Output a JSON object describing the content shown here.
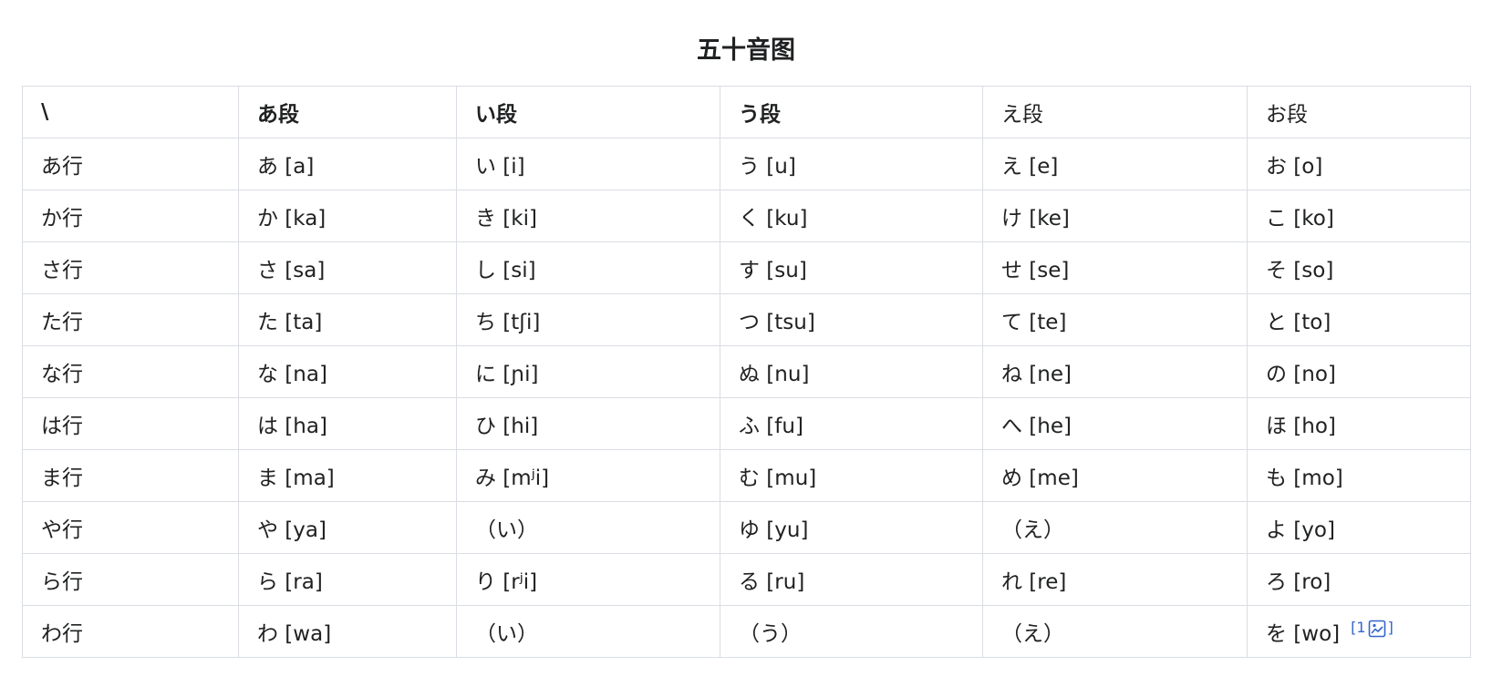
{
  "caption": "五十音图",
  "header": [
    "\\",
    "あ段",
    "い段",
    "う段",
    "え段",
    "お段"
  ],
  "rows": [
    [
      "あ行",
      "あ [a]",
      "い [i]",
      "う [u]",
      "え [e]",
      "お [o]"
    ],
    [
      "か行",
      "か [ka]",
      "き [ki]",
      "く [ku]",
      "け [ke]",
      "こ [ko]"
    ],
    [
      "さ行",
      "さ [sa]",
      "し [si]",
      "す [su]",
      "せ [se]",
      "そ [so]"
    ],
    [
      "た行",
      "た [ta]",
      "ち [tʃi]",
      "つ [tsu]",
      "て [te]",
      "と [to]"
    ],
    [
      "な行",
      "な [na]",
      "に [ɲi]",
      "ぬ [nu]",
      "ね [ne]",
      "の [no]"
    ],
    [
      "は行",
      "は [ha]",
      "ひ [hi]",
      "ふ [fu]",
      "へ [he]",
      "ほ [ho]"
    ],
    [
      "ま行",
      "ま [ma]",
      "み [mʲi]",
      "む [mu]",
      "め [me]",
      "も [mo]"
    ],
    [
      "や行",
      "や [ya]",
      "（い）",
      "ゆ [yu]",
      "（え）",
      "よ [yo]"
    ],
    [
      "ら行",
      "ら [ra]",
      "り [rʲi]",
      "る [ru]",
      "れ [re]",
      "ろ [ro]"
    ],
    [
      "わ行",
      "わ [wa]",
      "（い）",
      "（う）",
      "（え）",
      "を [wo]"
    ]
  ],
  "reference": {
    "open": "[1",
    "close": "]",
    "icon": "image-chart-icon",
    "color": "#3366cc"
  }
}
